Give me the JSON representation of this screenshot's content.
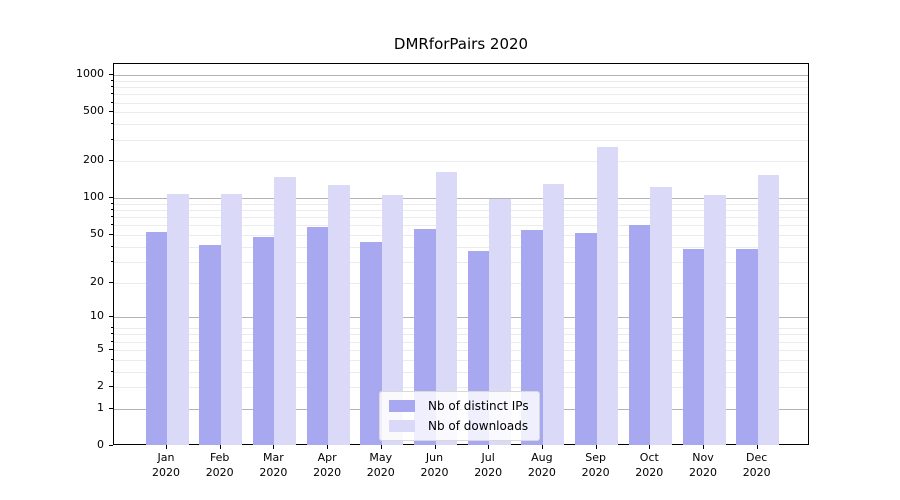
{
  "chart_data": {
    "type": "bar",
    "title": "DMRforPairs 2020",
    "categories": [
      "Jan 2020",
      "Feb 2020",
      "Mar 2020",
      "Apr 2020",
      "May 2020",
      "Jun 2020",
      "Jul 2020",
      "Aug 2020",
      "Sep 2020",
      "Oct 2020",
      "Nov 2020",
      "Dec 2020"
    ],
    "month_labels": [
      "Jan",
      "Feb",
      "Mar",
      "Apr",
      "May",
      "Jun",
      "Jul",
      "Aug",
      "Sep",
      "Oct",
      "Nov",
      "Dec"
    ],
    "year_label": "2020",
    "series": [
      {
        "name": "Nb of distinct IPs",
        "color": "#a8a8f0",
        "values": [
          53,
          41,
          48,
          58,
          44,
          56,
          37,
          55,
          52,
          60,
          38,
          38
        ]
      },
      {
        "name": "Nb of downloads",
        "color": "#dadaf8",
        "values": [
          109,
          109,
          150,
          129,
          107,
          165,
          99,
          132,
          260,
          124,
          106,
          154
        ]
      }
    ],
    "xlabel": "",
    "ylabel": "",
    "yscale": "log1p",
    "ylim": [
      0,
      1234
    ],
    "y_ticks": [
      0,
      1,
      2,
      5,
      10,
      20,
      50,
      100,
      200,
      500,
      1000
    ],
    "grid": {
      "major_at": [
        1,
        10,
        100,
        1000
      ],
      "minor_at": [
        2,
        3,
        4,
        5,
        6,
        7,
        8,
        20,
        30,
        40,
        50,
        60,
        70,
        80,
        90,
        200,
        300,
        400,
        500,
        600,
        700,
        800,
        900
      ],
      "major_color": "#b3b3b3",
      "minor_color": "#ebebeb"
    },
    "legend": {
      "position": "lower center",
      "entries": [
        "Nb of distinct IPs",
        "Nb of downloads"
      ]
    }
  }
}
